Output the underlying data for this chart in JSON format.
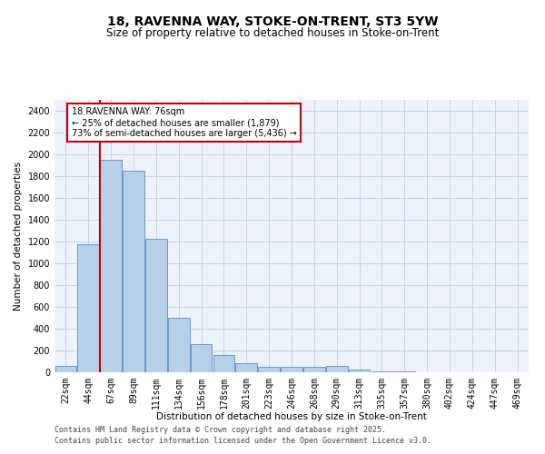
{
  "title_line1": "18, RAVENNA WAY, STOKE-ON-TRENT, ST3 5YW",
  "title_line2": "Size of property relative to detached houses in Stoke-on-Trent",
  "xlabel": "Distribution of detached houses by size in Stoke-on-Trent",
  "ylabel": "Number of detached properties",
  "categories": [
    "22sqm",
    "44sqm",
    "67sqm",
    "89sqm",
    "111sqm",
    "134sqm",
    "156sqm",
    "178sqm",
    "201sqm",
    "223sqm",
    "246sqm",
    "268sqm",
    "290sqm",
    "313sqm",
    "335sqm",
    "357sqm",
    "380sqm",
    "402sqm",
    "424sqm",
    "447sqm",
    "469sqm"
  ],
  "values": [
    55,
    1175,
    1950,
    1850,
    1225,
    500,
    255,
    155,
    80,
    50,
    50,
    50,
    60,
    25,
    10,
    5,
    3,
    2,
    1,
    1,
    1
  ],
  "bar_color": "#b8cfe8",
  "bar_edge_color": "#6699cc",
  "background_color": "#eef2fb",
  "grid_color": "#c8d4e8",
  "annotation_text": "18 RAVENNA WAY: 76sqm\n← 25% of detached houses are smaller (1,879)\n73% of semi-detached houses are larger (5,436) →",
  "annotation_box_color": "#ffffff",
  "annotation_box_edge": "#cc0000",
  "vline_color": "#cc0000",
  "ylim": [
    0,
    2500
  ],
  "yticks": [
    0,
    200,
    400,
    600,
    800,
    1000,
    1200,
    1400,
    1600,
    1800,
    2000,
    2200,
    2400
  ],
  "footer_line1": "Contains HM Land Registry data © Crown copyright and database right 2025.",
  "footer_line2": "Contains public sector information licensed under the Open Government Licence v3.0.",
  "title_fontsize": 10,
  "subtitle_fontsize": 8.5,
  "axis_label_fontsize": 7.5,
  "tick_fontsize": 7,
  "annotation_fontsize": 7,
  "footer_fontsize": 6
}
